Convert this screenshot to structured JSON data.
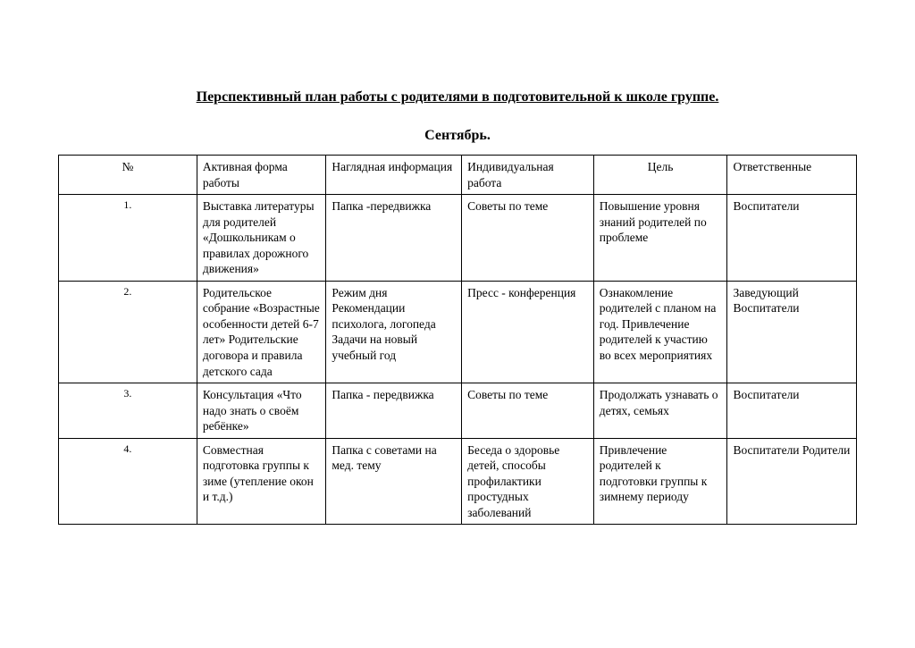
{
  "title": "Перспективный план работы с родителями в подготовительной к школе группе.",
  "subtitle": "Сентябрь.",
  "table": {
    "headers": {
      "num": "№",
      "active": "Активная форма работы",
      "visual": "Наглядная информация",
      "individual": "Индивидуальная работа",
      "goal": "Цель",
      "responsible": "Ответственные"
    },
    "rows": [
      {
        "num": "1.",
        "active": "Выставка литературы для родителей «Дошкольникам о правилах дорожного движения»",
        "visual": "Папка -передвижка",
        "individual": "Советы по теме",
        "goal": "Повышение уровня знаний родителей по проблеме",
        "responsible": "Воспитатели"
      },
      {
        "num": "2.",
        "active": "Родительское собрание «Возрастные особенности детей 6-7 лет» Родительские договора и правила детского сада",
        "visual": "Режим дня Рекомендации психолога, логопеда Задачи на новый учебный год",
        "individual": "Пресс - конференция",
        "goal": "Ознакомление родителей с планом на год. Привлечение родителей к участию во всех мероприятиях",
        "responsible": "Заведующий Воспитатели"
      },
      {
        "num": "3.",
        "active": "Консультация «Что надо знать о своём ребёнке»",
        "visual": "Папка - передвижка",
        "individual": "Советы по теме",
        "goal": "Продолжать узнавать о детях, семьях",
        "responsible": "Воспитатели"
      },
      {
        "num": "4.",
        "active": "Совместная подготовка группы к зиме (утепление окон и т.д.)",
        "visual": "Папка с советами на мед. тему",
        "individual": "Беседа о здоровье детей, способы профилактики простудных заболеваний",
        "goal": "Привлечение родителей к подготовки группы к зимнему периоду",
        "responsible": "Воспитатели Родители"
      }
    ]
  }
}
